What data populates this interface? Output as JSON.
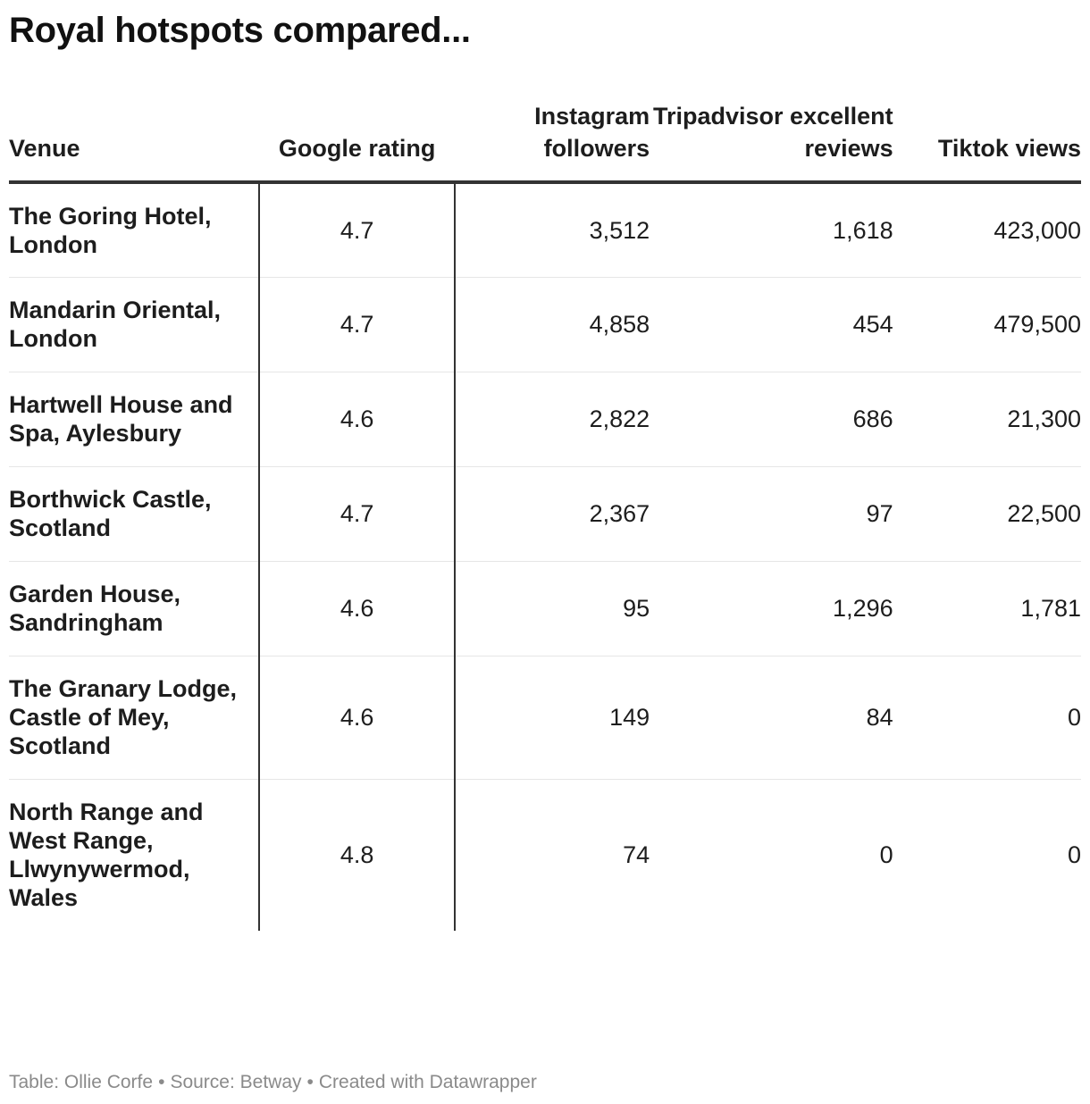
{
  "title": "Royal hotspots compared...",
  "chart_data": {
    "type": "table",
    "columns": [
      "Venue",
      "Google rating",
      "Instagram followers",
      "Tripadvisor excellent reviews",
      "Tiktok views"
    ],
    "rows": [
      {
        "venue": "The Goring Hotel, London",
        "google": "4.7",
        "instagram": "3,512",
        "tripadvisor": "1,618",
        "tiktok": "423,000"
      },
      {
        "venue": "Mandarin Oriental, London",
        "google": "4.7",
        "instagram": "4,858",
        "tripadvisor": "454",
        "tiktok": "479,500"
      },
      {
        "venue": "Hartwell House and Spa, Aylesbury",
        "google": "4.6",
        "instagram": "2,822",
        "tripadvisor": "686",
        "tiktok": "21,300"
      },
      {
        "venue": "Borthwick Castle, Scotland",
        "google": "4.7",
        "instagram": "2,367",
        "tripadvisor": "97",
        "tiktok": "22,500"
      },
      {
        "venue": "Garden House, Sandringham",
        "google": "4.6",
        "instagram": "95",
        "tripadvisor": "1,296",
        "tiktok": "1,781"
      },
      {
        "venue": "The Granary Lodge, Castle of Mey, Scotland",
        "google": "4.6",
        "instagram": "149",
        "tripadvisor": "84",
        "tiktok": "0"
      },
      {
        "venue": "North Range and West Range, Llwynywermod, Wales",
        "google": "4.8",
        "instagram": "74",
        "tripadvisor": "0",
        "tiktok": "0"
      }
    ]
  },
  "footer": {
    "byline": "Table: Ollie Corfe",
    "source": "Source: Betway",
    "credit": "Created with Datawrapper",
    "separator": "•"
  }
}
